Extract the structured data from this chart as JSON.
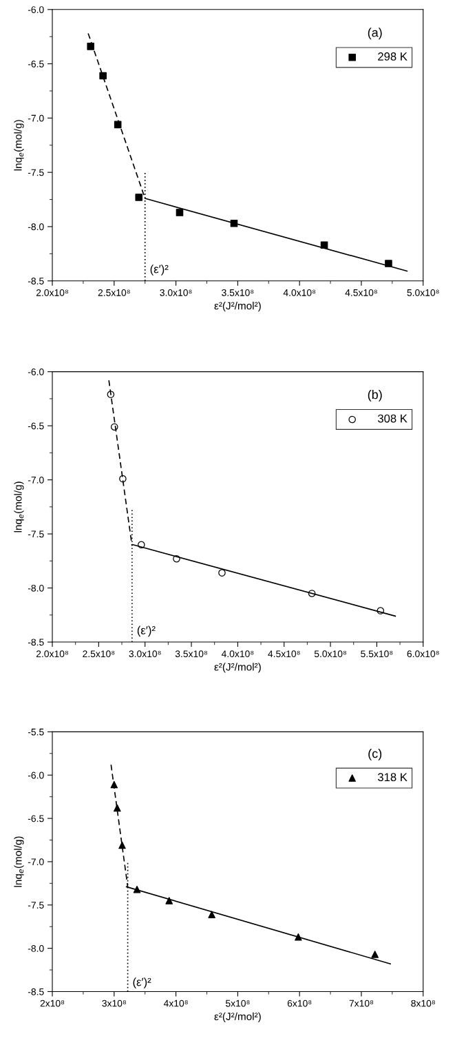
{
  "chart_data": [
    {
      "type": "scatter",
      "xlabel": "ε²(J²/mol²)",
      "ylabel": "lnq$_{e}$(mol/g)",
      "legend": "top right",
      "xlim": [
        200000000,
        500000000
      ],
      "xticks": [
        {
          "value": 200000000,
          "label": "2.0x10⁸"
        },
        {
          "value": 250000000,
          "label": "2.5x10⁸"
        },
        {
          "value": 300000000,
          "label": "3.0x10⁸"
        },
        {
          "value": 350000000,
          "label": "3.5x10⁸"
        },
        {
          "value": 400000000,
          "label": "4.0x10⁸"
        },
        {
          "value": 450000000,
          "label": "4.5x10⁸"
        },
        {
          "value": 500000000,
          "label": "5.0x10⁸"
        }
      ],
      "ylim": [
        -8.5,
        -6.0
      ],
      "yticks": [
        -8.5,
        {
          "value": -8,
          "label": "-8.0"
        },
        -7.5,
        {
          "value": -7,
          "label": "-7.0"
        },
        -6.5,
        {
          "value": -6,
          "label": "-6.0"
        }
      ],
      "annotations": [
        "(a)",
        {
          "text": "(ε′)²",
          "x": 275000000,
          "y": -8.4
        }
      ],
      "series": [
        {
          "name": "298 K",
          "marker": "square",
          "color": "#000000",
          "x": [
            231000000,
            241000000,
            253000000,
            270000000,
            303000000,
            347000000,
            420000000,
            472000000
          ],
          "values": [
            -6.34,
            -6.61,
            -7.06,
            -7.73,
            -7.87,
            -7.97,
            -8.17,
            -8.34
          ]
        },
        {
          "type": "line",
          "line_style": "dashed",
          "color": "#000000",
          "x": [
            229000000,
            275000000
          ],
          "values": [
            -6.22,
            -7.74
          ]
        },
        {
          "type": "line",
          "line_style": "solid",
          "color": "#000000",
          "x": [
            275000000,
            487000000
          ],
          "values": [
            -7.74,
            -8.41
          ]
        },
        {
          "type": "line",
          "line_style": "dotted",
          "color": "#000000",
          "x": [
            275000000,
            275000000
          ],
          "values": [
            -8.5,
            -7.5
          ]
        }
      ]
    },
    {
      "type": "scatter",
      "xlabel": "ε²(J²/mol²)",
      "ylabel": "lnq$_{e}$(mol/g)",
      "legend": "top right",
      "xlim": [
        200000000,
        600000000
      ],
      "xticks": [
        {
          "value": 200000000,
          "label": "2.0x10⁸"
        },
        {
          "value": 250000000,
          "label": "2.5x10⁸"
        },
        {
          "value": 300000000,
          "label": "3.0x10⁸"
        },
        {
          "value": 350000000,
          "label": "3.5x10⁸"
        },
        {
          "value": 400000000,
          "label": "4.0x10⁸"
        },
        {
          "value": 450000000,
          "label": "4.5x10⁸"
        },
        {
          "value": 500000000,
          "label": "5.0x10⁸"
        },
        {
          "value": 550000000,
          "label": "5.5x10⁸"
        },
        {
          "value": 600000000,
          "label": "6.0x10⁸"
        }
      ],
      "ylim": [
        -8.5,
        -6.0
      ],
      "yticks": [
        -8.5,
        {
          "value": -8,
          "label": "-8.0"
        },
        -7.5,
        {
          "value": -7,
          "label": "-7.0"
        },
        -6.5,
        {
          "value": -6,
          "label": "-6.0"
        }
      ],
      "annotations": [
        "(b)",
        {
          "text": "(ε′)²",
          "x": 286000000,
          "y": -8.4
        }
      ],
      "series": [
        {
          "name": "308 K",
          "marker": "circle",
          "color": "#000000",
          "x": [
            263000000,
            267000000,
            276000000,
            296000000,
            334000000,
            383000000,
            480000000,
            554000000
          ],
          "values": [
            -6.21,
            -6.51,
            -6.99,
            -7.6,
            -7.73,
            -7.86,
            -8.05,
            -8.21
          ]
        },
        {
          "type": "line",
          "line_style": "dashed",
          "color": "#000000",
          "x": [
            261000000,
            286000000
          ],
          "values": [
            -6.08,
            -7.61
          ]
        },
        {
          "type": "line",
          "line_style": "solid",
          "color": "#000000",
          "x": [
            287000000,
            570000000
          ],
          "values": [
            -7.6,
            -8.26
          ]
        },
        {
          "type": "line",
          "line_style": "dotted",
          "color": "#000000",
          "x": [
            286000000,
            286000000
          ],
          "values": [
            -8.5,
            -7.28
          ]
        }
      ]
    },
    {
      "type": "scatter",
      "xlabel": "ε²(J²/mol²)",
      "ylabel": "lnq$_{e}$(mol/g)",
      "legend": "top right",
      "xlim": [
        200000000,
        800000000
      ],
      "xticks": [
        {
          "value": 200000000,
          "label": "2x10⁸"
        },
        {
          "value": 300000000,
          "label": "3x10⁸"
        },
        {
          "value": 400000000,
          "label": "4x10⁸"
        },
        {
          "value": 500000000,
          "label": "5x10⁸"
        },
        {
          "value": 600000000,
          "label": "6x10⁸"
        },
        {
          "value": 700000000,
          "label": "7x10⁸"
        },
        {
          "value": 800000000,
          "label": "8x10⁸"
        }
      ],
      "ylim": [
        -8.5,
        -5.5
      ],
      "yticks": [
        -8.5,
        {
          "value": -8,
          "label": "-8.0"
        },
        -7.5,
        {
          "value": -7,
          "label": "-7.0"
        },
        -6.5,
        {
          "value": -6,
          "label": "-6.0"
        },
        -5.5
      ],
      "annotations": [
        "(c)",
        {
          "text": "(ε′)²",
          "x": 322000000,
          "y": -8.4
        }
      ],
      "series": [
        {
          "name": "318 K",
          "marker": "triangle",
          "color": "#000000",
          "x": [
            300000000,
            305000000,
            313000000,
            337000000,
            389000000,
            458000000,
            598000000,
            722000000
          ],
          "values": [
            -6.11,
            -6.38,
            -6.81,
            -7.32,
            -7.45,
            -7.61,
            -7.87,
            -8.07
          ]
        },
        {
          "type": "line",
          "line_style": "dashed",
          "color": "#000000",
          "x": [
            295000000,
            322000000
          ],
          "values": [
            -5.88,
            -7.29
          ]
        },
        {
          "type": "line",
          "line_style": "solid",
          "color": "#000000",
          "x": [
            320000000,
            747000000
          ],
          "values": [
            -7.29,
            -8.18
          ]
        },
        {
          "type": "line",
          "line_style": "dotted",
          "color": "#000000",
          "x": [
            322000000,
            322000000
          ],
          "values": [
            -8.5,
            -7.0
          ]
        }
      ]
    }
  ]
}
